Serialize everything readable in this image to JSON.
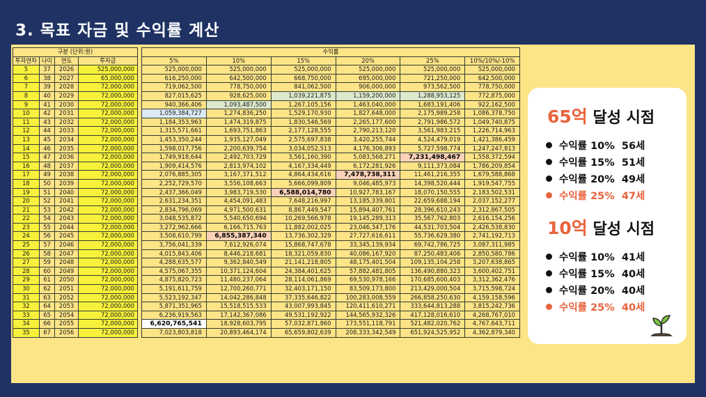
{
  "title": "3. 목표 자금 및 수익률 계산",
  "left_header": {
    "group": "구분 (단위:원)",
    "cols": [
      "투자연차",
      "나이",
      "연도",
      "투자금"
    ]
  },
  "right_header": {
    "group": "수익률",
    "cols": [
      "5%",
      "10%",
      "15%",
      "20%",
      "25%",
      "10%/10%/-10%"
    ]
  },
  "rows": [
    {
      "n": "5",
      "age": "37",
      "year": "2026",
      "inv": "525,000,000",
      "v": [
        "525,000,000",
        "525,000,000",
        "525,000,000",
        "525,000,000",
        "525,000,000",
        "525,000,000"
      ],
      "h": []
    },
    {
      "n": "6",
      "age": "38",
      "year": "2027",
      "inv": "65,000,000",
      "v": [
        "616,250,000",
        "642,500,000",
        "668,750,000",
        "695,000,000",
        "721,250,000",
        "642,500,000"
      ],
      "h": []
    },
    {
      "n": "7",
      "age": "39",
      "year": "2028",
      "inv": "72,000,000",
      "v": [
        "719,062,500",
        "778,750,000",
        "841,062,500",
        "906,000,000",
        "973,562,500",
        "778,750,000"
      ],
      "h": []
    },
    {
      "n": "8",
      "age": "40",
      "year": "2029",
      "inv": "72,000,000",
      "v": [
        "827,015,625",
        "928,625,000",
        "1,039,221,875",
        "1,159,200,000",
        "1,288,953,125",
        "772,875,000"
      ],
      "h": [
        [
          2,
          "g"
        ],
        [
          3,
          "g"
        ],
        [
          4,
          "g"
        ]
      ]
    },
    {
      "n": "9",
      "age": "41",
      "year": "2030",
      "inv": "72,000,000",
      "v": [
        "940,366,406",
        "1,093,487,500",
        "1,267,105,156",
        "1,463,040,000",
        "1,683,191,406",
        "922,162,500"
      ],
      "h": [
        [
          1,
          "g"
        ]
      ]
    },
    {
      "n": "10",
      "age": "42",
      "year": "2031",
      "inv": "72,000,000",
      "v": [
        "1,059,384,727",
        "1,274,836,250",
        "1,529,170,930",
        "1,827,648,000",
        "2,175,989,258",
        "1,086,378,750"
      ],
      "h": [
        [
          0,
          "w"
        ]
      ]
    },
    {
      "n": "11",
      "age": "43",
      "year": "2032",
      "inv": "72,000,000",
      "v": [
        "1,184,353,963",
        "1,474,319,875",
        "1,830,546,569",
        "2,265,177,600",
        "2,791,986,572",
        "1,049,740,875"
      ],
      "h": []
    },
    {
      "n": "12",
      "age": "44",
      "year": "2033",
      "inv": "72,000,000",
      "v": [
        "1,315,571,661",
        "1,693,751,863",
        "2,177,128,555",
        "2,790,213,120",
        "3,561,983,215",
        "1,226,714,963"
      ],
      "h": []
    },
    {
      "n": "13",
      "age": "45",
      "year": "2034",
      "inv": "72,000,000",
      "v": [
        "1,453,350,244",
        "1,935,127,049",
        "2,575,697,838",
        "3,420,255,744",
        "4,524,479,019",
        "1,421,386,459"
      ],
      "h": []
    },
    {
      "n": "14",
      "age": "46",
      "year": "2035",
      "inv": "72,000,000",
      "v": [
        "1,598,017,756",
        "2,200,639,754",
        "3,034,052,513",
        "4,176,306,893",
        "5,727,598,774",
        "1,247,247,813"
      ],
      "h": []
    },
    {
      "n": "15",
      "age": "47",
      "year": "2036",
      "inv": "72,000,000",
      "v": [
        "1,749,918,644",
        "2,492,703,729",
        "3,561,160,390",
        "5,083,568,271",
        "7,231,498,467",
        "1,558,372,594"
      ],
      "h": [
        [
          4,
          "o"
        ]
      ]
    },
    {
      "n": "16",
      "age": "48",
      "year": "2037",
      "inv": "72,000,000",
      "v": [
        "1,909,414,576",
        "2,813,974,102",
        "4,167,334,449",
        "6,172,281,926",
        "9,111,373,084",
        "1,786,209,854"
      ],
      "h": []
    },
    {
      "n": "17",
      "age": "49",
      "year": "2038",
      "inv": "72,000,000",
      "v": [
        "2,076,885,305",
        "3,167,371,512",
        "4,864,434,616",
        "7,478,738,311",
        "11,461,216,355",
        "1,679,588,868"
      ],
      "h": [
        [
          3,
          "o"
        ]
      ]
    },
    {
      "n": "18",
      "age": "50",
      "year": "2039",
      "inv": "72,000,000",
      "v": [
        "2,252,729,570",
        "3,556,108,663",
        "5,666,099,809",
        "9,046,485,973",
        "14,398,520,444",
        "1,919,547,755"
      ],
      "h": []
    },
    {
      "n": "19",
      "age": "51",
      "year": "2040",
      "inv": "72,000,000",
      "v": [
        "2,437,366,049",
        "3,983,719,530",
        "6,588,014,780",
        "10,927,783,167",
        "18,070,150,555",
        "2,183,502,531"
      ],
      "h": [
        [
          2,
          "o"
        ]
      ]
    },
    {
      "n": "20",
      "age": "52",
      "year": "2041",
      "inv": "72,000,000",
      "v": [
        "2,631,234,351",
        "4,454,091,483",
        "7,648,216,997",
        "13,185,339,801",
        "22,659,688,194",
        "2,037,152,277"
      ],
      "h": []
    },
    {
      "n": "21",
      "age": "53",
      "year": "2042",
      "inv": "72,000,000",
      "v": [
        "2,834,796,069",
        "4,971,500,631",
        "8,867,449,547",
        "15,894,407,761",
        "28,396,610,243",
        "2,312,867,505"
      ],
      "h": []
    },
    {
      "n": "22",
      "age": "54",
      "year": "2043",
      "inv": "72,000,000",
      "v": [
        "3,048,535,872",
        "5,540,650,694",
        "10,269,566,978",
        "19,145,289,313",
        "35,567,762,803",
        "2,616,154,256"
      ],
      "h": []
    },
    {
      "n": "23",
      "age": "55",
      "year": "2044",
      "inv": "72,000,000",
      "v": [
        "3,272,962,666",
        "6,166,715,763",
        "11,882,002,025",
        "23,046,347,176",
        "44,531,703,504",
        "2,426,538,830"
      ],
      "h": []
    },
    {
      "n": "24",
      "age": "56",
      "year": "2045",
      "inv": "72,000,000",
      "v": [
        "3,508,610,799",
        "6,855,387,340",
        "13,736,302,329",
        "27,727,616,611",
        "55,736,629,380",
        "2,741,192,713"
      ],
      "h": [
        [
          1,
          "o"
        ]
      ]
    },
    {
      "n": "25",
      "age": "57",
      "year": "2046",
      "inv": "72,000,000",
      "v": [
        "3,756,041,339",
        "7,612,926,074",
        "15,868,747,678",
        "33,345,139,934",
        "69,742,786,725",
        "3,087,311,985"
      ],
      "h": []
    },
    {
      "n": "26",
      "age": "58",
      "year": "2047",
      "inv": "72,000,000",
      "v": [
        "4,015,843,406",
        "8,446,218,681",
        "18,321,059,830",
        "40,086,167,920",
        "87,250,483,406",
        "2,850,580,786"
      ],
      "h": []
    },
    {
      "n": "27",
      "age": "59",
      "year": "2048",
      "inv": "72,000,000",
      "v": [
        "4,288,635,577",
        "9,362,840,549",
        "21,141,218,805",
        "48,175,401,504",
        "109,135,104,258",
        "3,207,638,865"
      ],
      "h": []
    },
    {
      "n": "28",
      "age": "60",
      "year": "2049",
      "inv": "72,000,000",
      "v": [
        "4,575,067,355",
        "10,371,124,604",
        "24,384,401,625",
        "57,882,481,805",
        "136,490,880,323",
        "3,600,402,751"
      ],
      "h": []
    },
    {
      "n": "29",
      "age": "61",
      "year": "2050",
      "inv": "72,000,000",
      "v": [
        "4,875,820,723",
        "11,480,237,064",
        "28,114,061,869",
        "69,530,978,166",
        "170,685,600,403",
        "3,312,362,476"
      ],
      "h": []
    },
    {
      "n": "30",
      "age": "62",
      "year": "2051",
      "inv": "72,000,000",
      "v": [
        "5,191,611,759",
        "12,700,260,771",
        "32,403,171,150",
        "83,509,173,800",
        "213,429,000,504",
        "3,715,598,724"
      ],
      "h": []
    },
    {
      "n": "31",
      "age": "63",
      "year": "2052",
      "inv": "72,000,000",
      "v": [
        "5,523,192,347",
        "14,042,286,848",
        "37,335,646,822",
        "100,283,008,559",
        "266,858,250,630",
        "4,159,158,596"
      ],
      "h": []
    },
    {
      "n": "32",
      "age": "64",
      "year": "2053",
      "inv": "72,000,000",
      "v": [
        "5,871,351,965",
        "15,518,515,533",
        "43,007,993,845",
        "120,411,610,271",
        "333,644,813,288",
        "3,815,242,736"
      ],
      "h": []
    },
    {
      "n": "33",
      "age": "65",
      "year": "2054",
      "inv": "72,000,000",
      "v": [
        "6,236,919,563",
        "17,142,367,086",
        "49,531,192,922",
        "144,565,932,326",
        "417,128,016,610",
        "4,268,767,010"
      ],
      "h": []
    },
    {
      "n": "34",
      "age": "66",
      "year": "2055",
      "inv": "72,000,000",
      "v": [
        "6,620,765,541",
        "18,928,603,795",
        "57,032,871,860",
        "173,551,118,791",
        "521,482,020,762",
        "4,767,643,711"
      ],
      "h": [
        [
          0,
          "w"
        ]
      ]
    },
    {
      "n": "35",
      "age": "67",
      "year": "2056",
      "inv": "72,000,000",
      "v": [
        "7,023,803,818",
        "20,893,464,174",
        "65,659,802,639",
        "208,333,342,549",
        "651,924,525,952",
        "4,362,879,340"
      ],
      "h": []
    }
  ],
  "card": {
    "heading1_num": "65억",
    "heading1_text": "달성 시점",
    "list1": [
      {
        "text": "수익률 10%  56세",
        "highlight": false
      },
      {
        "text": "수익률 15%  51세",
        "highlight": false
      },
      {
        "text": "수익률 20%  49세",
        "highlight": false
      },
      {
        "text": "수익률 25%  47세",
        "highlight": true
      }
    ],
    "heading2_num": "10억",
    "heading2_text": "달성 시점",
    "list2": [
      {
        "text": "수익률 10%  41세",
        "highlight": false
      },
      {
        "text": "수익률 15%  40세",
        "highlight": false
      },
      {
        "text": "수익률 20%  40세",
        "highlight": false
      },
      {
        "text": "수익률 25%  40세",
        "highlight": true
      }
    ],
    "icon": "sprout-icon"
  },
  "colors": {
    "background": "#1f3263",
    "panel": "#fde487",
    "investment_cell": "#f8f13c",
    "accent": "#e8633c"
  }
}
